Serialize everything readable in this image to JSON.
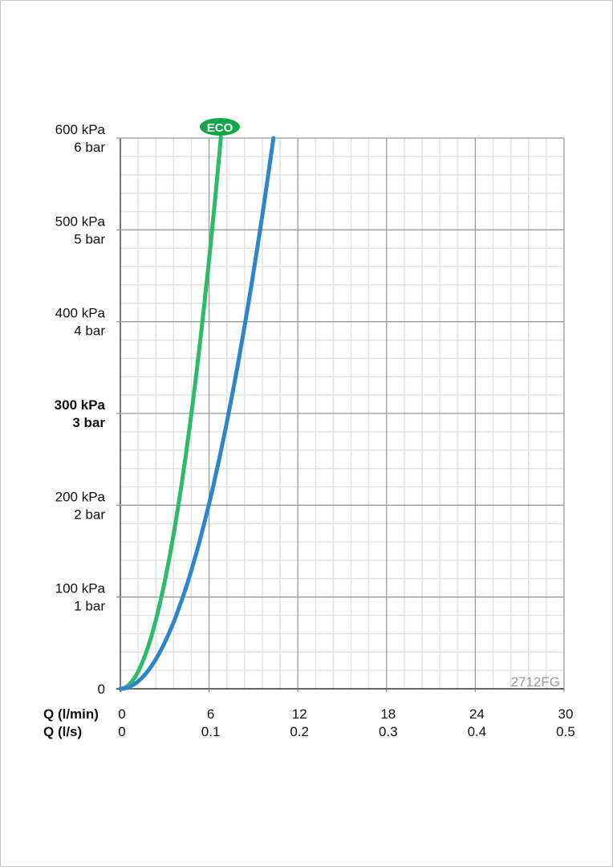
{
  "chart_data": {
    "type": "line",
    "xlabel": "Q (l/min)",
    "xlabel2": "Q (l/s)",
    "xlim": [
      0,
      30
    ],
    "ylim": [
      0,
      600
    ],
    "x_ticks": [
      "0",
      "6",
      "12",
      "18",
      "24",
      "30"
    ],
    "x2_ticks": [
      "0",
      "0.1",
      "0.2",
      "0.3",
      "0.4",
      "0.5"
    ],
    "y_ticks_kpa": [
      "0",
      "100 kPa",
      "200 kPa",
      "300 kPa",
      "400 kPa",
      "500 kPa",
      "600 kPa"
    ],
    "y_ticks_bar": [
      "",
      "1 bar",
      "2 bar",
      "3 bar",
      "4 bar",
      "5 bar",
      "6 bar"
    ],
    "grid": true,
    "minor_divisions": 5,
    "annotation_code": "2712FG",
    "eco_badge": "ECO",
    "series": [
      {
        "color": "#2dba6a",
        "x": [
          0,
          1,
          2,
          3,
          4,
          5,
          6,
          6.8
        ],
        "y": [
          0,
          13,
          52,
          117,
          208,
          325,
          468,
          601
        ]
      },
      {
        "color": "#2e86c8",
        "x": [
          0,
          2,
          4,
          6,
          8,
          10,
          10.35
        ],
        "y": [
          0,
          22,
          90,
          202,
          358,
          560,
          600
        ]
      }
    ]
  }
}
